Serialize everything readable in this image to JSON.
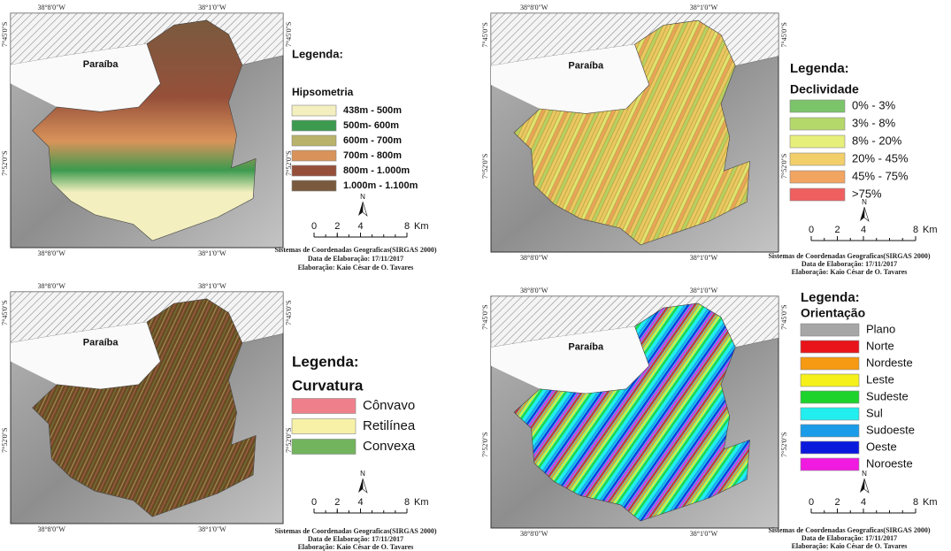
{
  "panels": [
    {
      "coords": {
        "top": [
          "38°8'0\"W",
          "38°1'0\"W"
        ],
        "bottom": [
          "38°8'0\"W",
          "38°1'0\"W"
        ],
        "left": [
          "7°45'0\"S",
          "7°52'0\"S"
        ],
        "right": [
          "7°45'0\"S",
          "7°52'0\"S"
        ]
      },
      "place": "Paraíba",
      "legend_title": "Legenda:",
      "legend_subtitle": "Hipsometria",
      "legend_items": [
        {
          "label": "438m - 500m",
          "color": "#f3efbf"
        },
        {
          "label": "500m- 600m",
          "color": "#3c9a4e"
        },
        {
          "label": "600m - 700m",
          "color": "#b9b26a"
        },
        {
          "label": "700m - 800m",
          "color": "#d9935a"
        },
        {
          "label": "800m - 1.000m",
          "color": "#96503a"
        },
        {
          "label": "1.000m - 1.100m",
          "color": "#7a5a3e"
        }
      ],
      "north": "N",
      "scale": {
        "ticks": [
          0,
          2,
          4,
          8
        ],
        "unit": "Km"
      },
      "credits": [
        "Sistemas de Coordenadas Geograficas(SIRGAS 2000)",
        "Data de Elaboração: 17/11/2017",
        "Elaboração: Kaio César de O. Tavares"
      ]
    },
    {
      "coords": {
        "top": [
          "38°8'0\"W",
          "38°1'0\"W"
        ],
        "bottom": [
          "38°8'0\"W",
          "38°1'0\"W"
        ],
        "left": [
          "7°45'0\"S",
          "7°52'0\"S"
        ],
        "right": [
          "7°45'0\"S",
          "7°52'0\"S"
        ]
      },
      "place": "Paraíba",
      "legend_title": "Legenda:",
      "legend_subtitle": "Declividade",
      "legend_items": [
        {
          "label": "0% - 3%",
          "color": "#7cc46a"
        },
        {
          "label": "3% - 8%",
          "color": "#b5d86a"
        },
        {
          "label": "8% - 20%",
          "color": "#e6ef7a"
        },
        {
          "label": "20% - 45%",
          "color": "#f3cf6a"
        },
        {
          "label": "45% - 75%",
          "color": "#f2a461"
        },
        {
          "label": ">75%",
          "color": "#ef5f5f"
        }
      ],
      "north": "N",
      "scale": {
        "ticks": [
          0,
          2,
          4,
          8
        ],
        "unit": "Km"
      },
      "credits": [
        "Sistemas de Coordenadas Geograficas(SIRGAS 2000)",
        "Data de Elaboração: 17/11/2017",
        "Elaboração: Kaio César de O. Tavares"
      ]
    },
    {
      "coords": {
        "top": [
          "38°8'0\"W",
          "38°1'0\"W"
        ],
        "bottom": [
          "38°8'0\"W",
          "38°1'0\"W"
        ],
        "left": [
          "7°45'0\"S",
          "7°52'0\"S"
        ],
        "right": [
          "7°45'0\"S",
          "7°52'0\"S"
        ]
      },
      "place": "Paraíba",
      "legend_title": "Legenda:",
      "legend_subtitle": "Curvatura",
      "legend_items": [
        {
          "label": "Cônvavo",
          "color": "#f07f8c"
        },
        {
          "label": "Retilínea",
          "color": "#f7f1a8"
        },
        {
          "label": "Convexa",
          "color": "#72b45e"
        }
      ],
      "north": "N",
      "scale": {
        "ticks": [
          0,
          2,
          4,
          8
        ],
        "unit": "Km"
      },
      "credits": [
        "Sistemas de Coordenadas Geograficas(SIRGAS 2000)",
        "Data de Elaboração: 17/11/2017",
        "Elaboração: Kaio César de O. Tavares"
      ]
    },
    {
      "coords": {
        "top": [
          "38°8'0\"W",
          "38°1'0\"W"
        ],
        "bottom": [
          "38°8'0\"W",
          "38°1'0\"W"
        ],
        "left": [
          "7°45'0\"S",
          "7°52'0\"S"
        ],
        "right": [
          "7°45'0\"S",
          "7°52'0\"S"
        ]
      },
      "place": "Paraíba",
      "legend_title": "Legenda:",
      "legend_subtitle": "Orientação",
      "legend_items": [
        {
          "label": "Plano",
          "color": "#a6a6a6"
        },
        {
          "label": "Norte",
          "color": "#e8141a"
        },
        {
          "label": "Nordeste",
          "color": "#f59a12"
        },
        {
          "label": "Leste",
          "color": "#f5f01a"
        },
        {
          "label": "Sudeste",
          "color": "#1ed42c"
        },
        {
          "label": "Sul",
          "color": "#22eef0"
        },
        {
          "label": "Sudoeste",
          "color": "#1a9ce8"
        },
        {
          "label": "Oeste",
          "color": "#0a1adc"
        },
        {
          "label": "Noroeste",
          "color": "#f01ae0"
        }
      ],
      "north": "N",
      "scale": {
        "ticks": [
          0,
          2,
          4,
          8
        ],
        "unit": "Km"
      },
      "credits": [
        "Sistemas de Coordenadas Geograficas(SIRGAS 2000)",
        "Data de Elaboração: 17/11/2017",
        "Elaboração: Kaio César de O. Tavares"
      ]
    }
  ]
}
